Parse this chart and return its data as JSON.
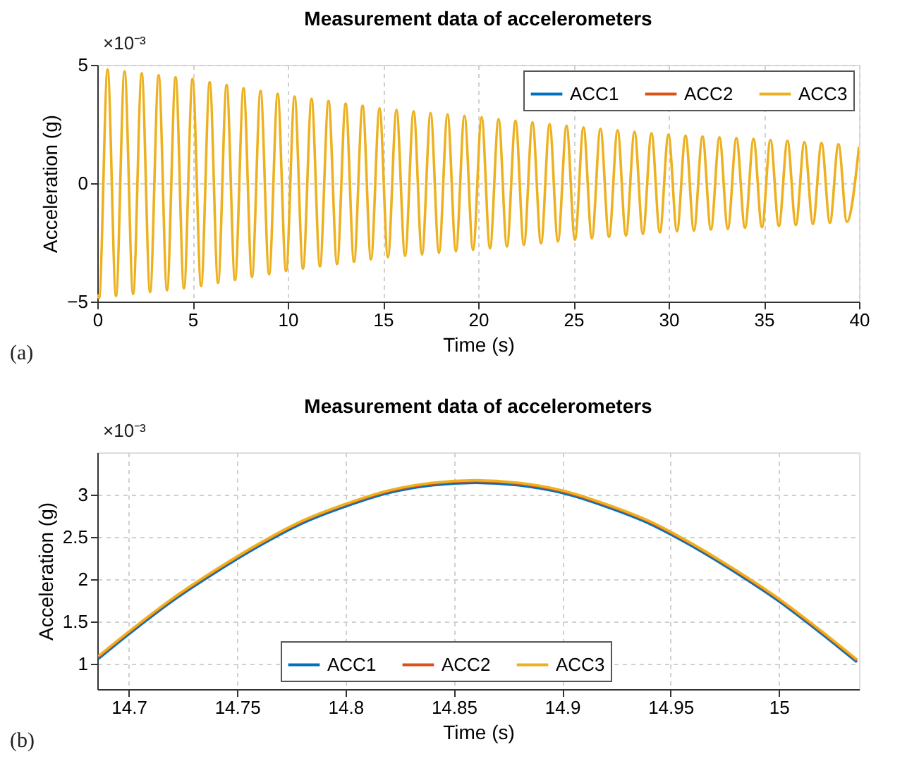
{
  "chart_data": [
    {
      "type": "line",
      "title": "Measurement data of accelerometers",
      "xlabel": "Time (s)",
      "ylabel": "Acceleration (g)",
      "annotations": [
        "×10⁻³",
        "(a)"
      ],
      "xlim": [
        0,
        40
      ],
      "xticks": [
        0,
        5,
        10,
        15,
        20,
        25,
        30,
        35,
        40
      ],
      "ylim": [
        -5,
        5
      ],
      "yticks": [
        -5,
        0,
        5
      ],
      "grid": true,
      "legend": "top right",
      "line_style": "solid",
      "marker": "none",
      "series": [
        {
          "name": "ACC1",
          "color": "#0072bd"
        },
        {
          "name": "ACC2",
          "color": "#d95319"
        },
        {
          "name": "ACC3",
          "color": "#edb120",
          "x": [
            0,
            0.09,
            0.54,
            0.98,
            1.43,
            1.88,
            2.33,
            2.77,
            3.22,
            3.66,
            4.11,
            4.55,
            5.0,
            5.45,
            5.9,
            6.34,
            6.79,
            7.23,
            7.68,
            8.12,
            8.57,
            9.02,
            9.47,
            9.91,
            10.36,
            10.8,
            11.25,
            11.69,
            12.14,
            12.59,
            13.04,
            13.48,
            13.93,
            14.37,
            14.82,
            15.26,
            15.71,
            16.16,
            16.61,
            17.05,
            17.5,
            17.94,
            18.39,
            18.83,
            19.28,
            19.73,
            20.18,
            20.62,
            21.07,
            21.51,
            21.96,
            22.4,
            22.85,
            23.3,
            23.75,
            24.19,
            24.64,
            25.08,
            25.53,
            25.97,
            26.42,
            26.87,
            27.32,
            27.76,
            28.21,
            28.65,
            29.1,
            29.54,
            29.99,
            30.44,
            30.89,
            31.33,
            31.78,
            32.22,
            32.67,
            33.11,
            33.56,
            34.01,
            34.46,
            34.9,
            35.35,
            35.79,
            36.24,
            36.68,
            37.13,
            37.58,
            38.03,
            38.47,
            38.92,
            39.36,
            40
          ],
          "values": [
            -4.7,
            -4.85,
            4.8,
            -4.76,
            4.72,
            -4.68,
            4.64,
            -4.6,
            4.56,
            -4.52,
            4.48,
            -4.44,
            4.4,
            -4.34,
            4.27,
            -4.21,
            4.15,
            -4.09,
            4.02,
            -3.96,
            3.9,
            -3.84,
            3.77,
            -3.71,
            3.66,
            -3.61,
            3.56,
            -3.51,
            3.47,
            -3.42,
            3.36,
            -3.32,
            3.27,
            -3.22,
            3.17,
            -3.13,
            3.1,
            -3.07,
            3.04,
            -3.01,
            2.97,
            -2.94,
            2.91,
            -2.88,
            2.85,
            -2.82,
            2.79,
            -2.75,
            2.71,
            -2.68,
            2.64,
            -2.61,
            2.57,
            -2.54,
            2.5,
            -2.46,
            2.43,
            -2.39,
            2.36,
            -2.33,
            2.3,
            -2.27,
            2.24,
            -2.21,
            2.17,
            -2.14,
            2.11,
            -2.08,
            2.05,
            -2.03,
            2.01,
            -2.0,
            1.98,
            -1.96,
            1.94,
            -1.93,
            1.91,
            -1.89,
            1.87,
            -1.86,
            1.83,
            -1.81,
            1.79,
            -1.77,
            1.74,
            -1.72,
            1.7,
            -1.68,
            1.65,
            -1.63,
            1.55
          ]
        }
      ]
    },
    {
      "type": "line",
      "title": "Measurement data of accelerometers",
      "xlabel": "Time (s)",
      "ylabel": "Acceleration (g)",
      "annotations": [
        "×10⁻³",
        "(b)"
      ],
      "xlim": [
        14.6855,
        15.037
      ],
      "xticks": [
        14.7,
        14.75,
        14.8,
        14.85,
        14.9,
        14.95,
        15
      ],
      "ylim": [
        0.7,
        3.5
      ],
      "yticks": [
        1,
        1.5,
        2,
        2.5,
        3
      ],
      "grid": true,
      "legend": "bottom",
      "line_style": "solid",
      "marker": "none",
      "x": [
        14.686,
        14.7,
        14.72,
        14.74,
        14.76,
        14.78,
        14.8,
        14.82,
        14.84,
        14.86,
        14.88,
        14.9,
        14.92,
        14.94,
        14.96,
        14.98,
        15.0,
        15.02,
        15.036
      ],
      "series": [
        {
          "name": "ACC1",
          "color": "#0072bd",
          "values": [
            1.06,
            1.35,
            1.74,
            2.08,
            2.39,
            2.66,
            2.86,
            3.02,
            3.11,
            3.14,
            3.11,
            3.02,
            2.86,
            2.66,
            2.39,
            2.08,
            1.74,
            1.35,
            1.02
          ]
        },
        {
          "name": "ACC2",
          "color": "#d95319",
          "values": [
            1.08,
            1.37,
            1.76,
            2.1,
            2.41,
            2.68,
            2.88,
            3.04,
            3.13,
            3.16,
            3.13,
            3.04,
            2.88,
            2.68,
            2.41,
            2.1,
            1.76,
            1.37,
            1.04
          ]
        },
        {
          "name": "ACC3",
          "color": "#edb120",
          "values": [
            1.09,
            1.38,
            1.77,
            2.11,
            2.42,
            2.69,
            2.89,
            3.05,
            3.14,
            3.17,
            3.14,
            3.05,
            2.89,
            2.69,
            2.42,
            2.11,
            1.77,
            1.38,
            1.05
          ]
        }
      ]
    }
  ]
}
